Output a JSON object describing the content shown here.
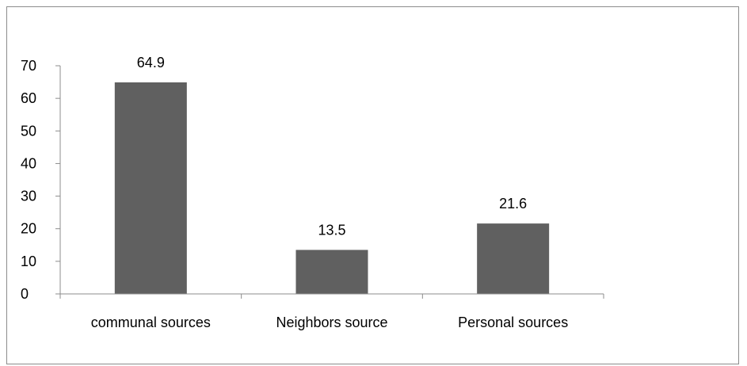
{
  "chart_data": {
    "type": "bar",
    "title": "",
    "xlabel": "",
    "ylabel": "",
    "categories": [
      "communal sources",
      "Neighbors source",
      "Personal sources"
    ],
    "values": [
      64.9,
      13.5,
      21.6
    ],
    "data_labels": [
      "64.9",
      "13.5",
      "21.6"
    ],
    "ylim": [
      0,
      70
    ],
    "yticks": [
      0,
      10,
      20,
      30,
      40,
      50,
      60,
      70
    ],
    "ytick_labels": [
      "0",
      "10",
      "20",
      "30",
      "40",
      "50",
      "60",
      "70"
    ],
    "grid": false,
    "legend": "none",
    "bar_color": "#606060",
    "axis_color": "#8c8c8c"
  }
}
